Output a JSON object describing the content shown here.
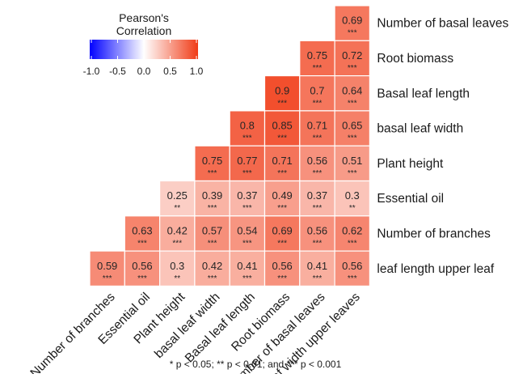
{
  "chart_data": {
    "type": "heatmap",
    "legend": {
      "title_line1": "Pearson's",
      "title_line2": "Correlation",
      "ticks": [
        "-1.0",
        "-0.5",
        "0.0",
        "0.5",
        "1.0"
      ],
      "range": [
        -1,
        1
      ],
      "placement": "top-left"
    },
    "colors": {
      "low": "#0000ff",
      "mid": "#ffffff",
      "high": "#f03b16"
    },
    "row_labels": [
      "Number of basal leaves",
      "Root biomass",
      "Basal leaf length",
      "basal leaf width",
      "Plant height",
      "Essential oil",
      "Number of branches",
      "leaf length upper leaf"
    ],
    "column_labels": [
      "Number of branches",
      "Essential oil",
      "Plant height",
      "basal leaf width",
      "Basal leaf length",
      "Root biomass",
      "Number of basal leaves",
      "leaf width upper leaves"
    ],
    "values": [
      [
        null,
        null,
        null,
        null,
        null,
        null,
        null,
        0.69
      ],
      [
        null,
        null,
        null,
        null,
        null,
        null,
        0.75,
        0.72
      ],
      [
        null,
        null,
        null,
        null,
        null,
        0.9,
        0.7,
        0.64
      ],
      [
        null,
        null,
        null,
        null,
        0.8,
        0.85,
        0.71,
        0.65
      ],
      [
        null,
        null,
        null,
        0.75,
        0.77,
        0.71,
        0.56,
        0.51
      ],
      [
        null,
        null,
        0.25,
        0.39,
        0.37,
        0.49,
        0.37,
        0.3
      ],
      [
        null,
        0.63,
        0.42,
        0.57,
        0.54,
        0.69,
        0.56,
        0.62
      ],
      [
        0.59,
        0.56,
        0.3,
        0.42,
        0.41,
        0.56,
        0.41,
        0.56
      ]
    ],
    "value_labels": [
      [
        null,
        null,
        null,
        null,
        null,
        null,
        null,
        "0.69"
      ],
      [
        null,
        null,
        null,
        null,
        null,
        null,
        "0.75",
        "0.72"
      ],
      [
        null,
        null,
        null,
        null,
        null,
        "0.9",
        "0.7",
        "0.64"
      ],
      [
        null,
        null,
        null,
        null,
        "0.8",
        "0.85",
        "0.71",
        "0.65"
      ],
      [
        null,
        null,
        null,
        "0.75",
        "0.77",
        "0.71",
        "0.56",
        "0.51"
      ],
      [
        null,
        null,
        "0.25",
        "0.39",
        "0.37",
        "0.49",
        "0.37",
        "0.3"
      ],
      [
        null,
        "0.63",
        "0.42",
        "0.57",
        "0.54",
        "0.69",
        "0.56",
        "0.62"
      ],
      [
        "0.59",
        "0.56",
        "0.3",
        "0.42",
        "0.41",
        "0.56",
        "0.41",
        "0.56"
      ]
    ],
    "significance": [
      [
        null,
        null,
        null,
        null,
        null,
        null,
        null,
        "***"
      ],
      [
        null,
        null,
        null,
        null,
        null,
        null,
        "***",
        "***"
      ],
      [
        null,
        null,
        null,
        null,
        null,
        "***",
        "***",
        "***"
      ],
      [
        null,
        null,
        null,
        null,
        "***",
        "***",
        "***",
        "***"
      ],
      [
        null,
        null,
        null,
        "***",
        "***",
        "***",
        "***",
        "***"
      ],
      [
        null,
        null,
        "**",
        "***",
        "***",
        "***",
        "***",
        "**"
      ],
      [
        null,
        "***",
        "***",
        "***",
        "***",
        "***",
        "***",
        "***"
      ],
      [
        "***",
        "***",
        "**",
        "***",
        "***",
        "***",
        "***",
        "***"
      ]
    ],
    "footnote": "* p < 0.05; ** p < 0.01; and *** p < 0.001"
  }
}
